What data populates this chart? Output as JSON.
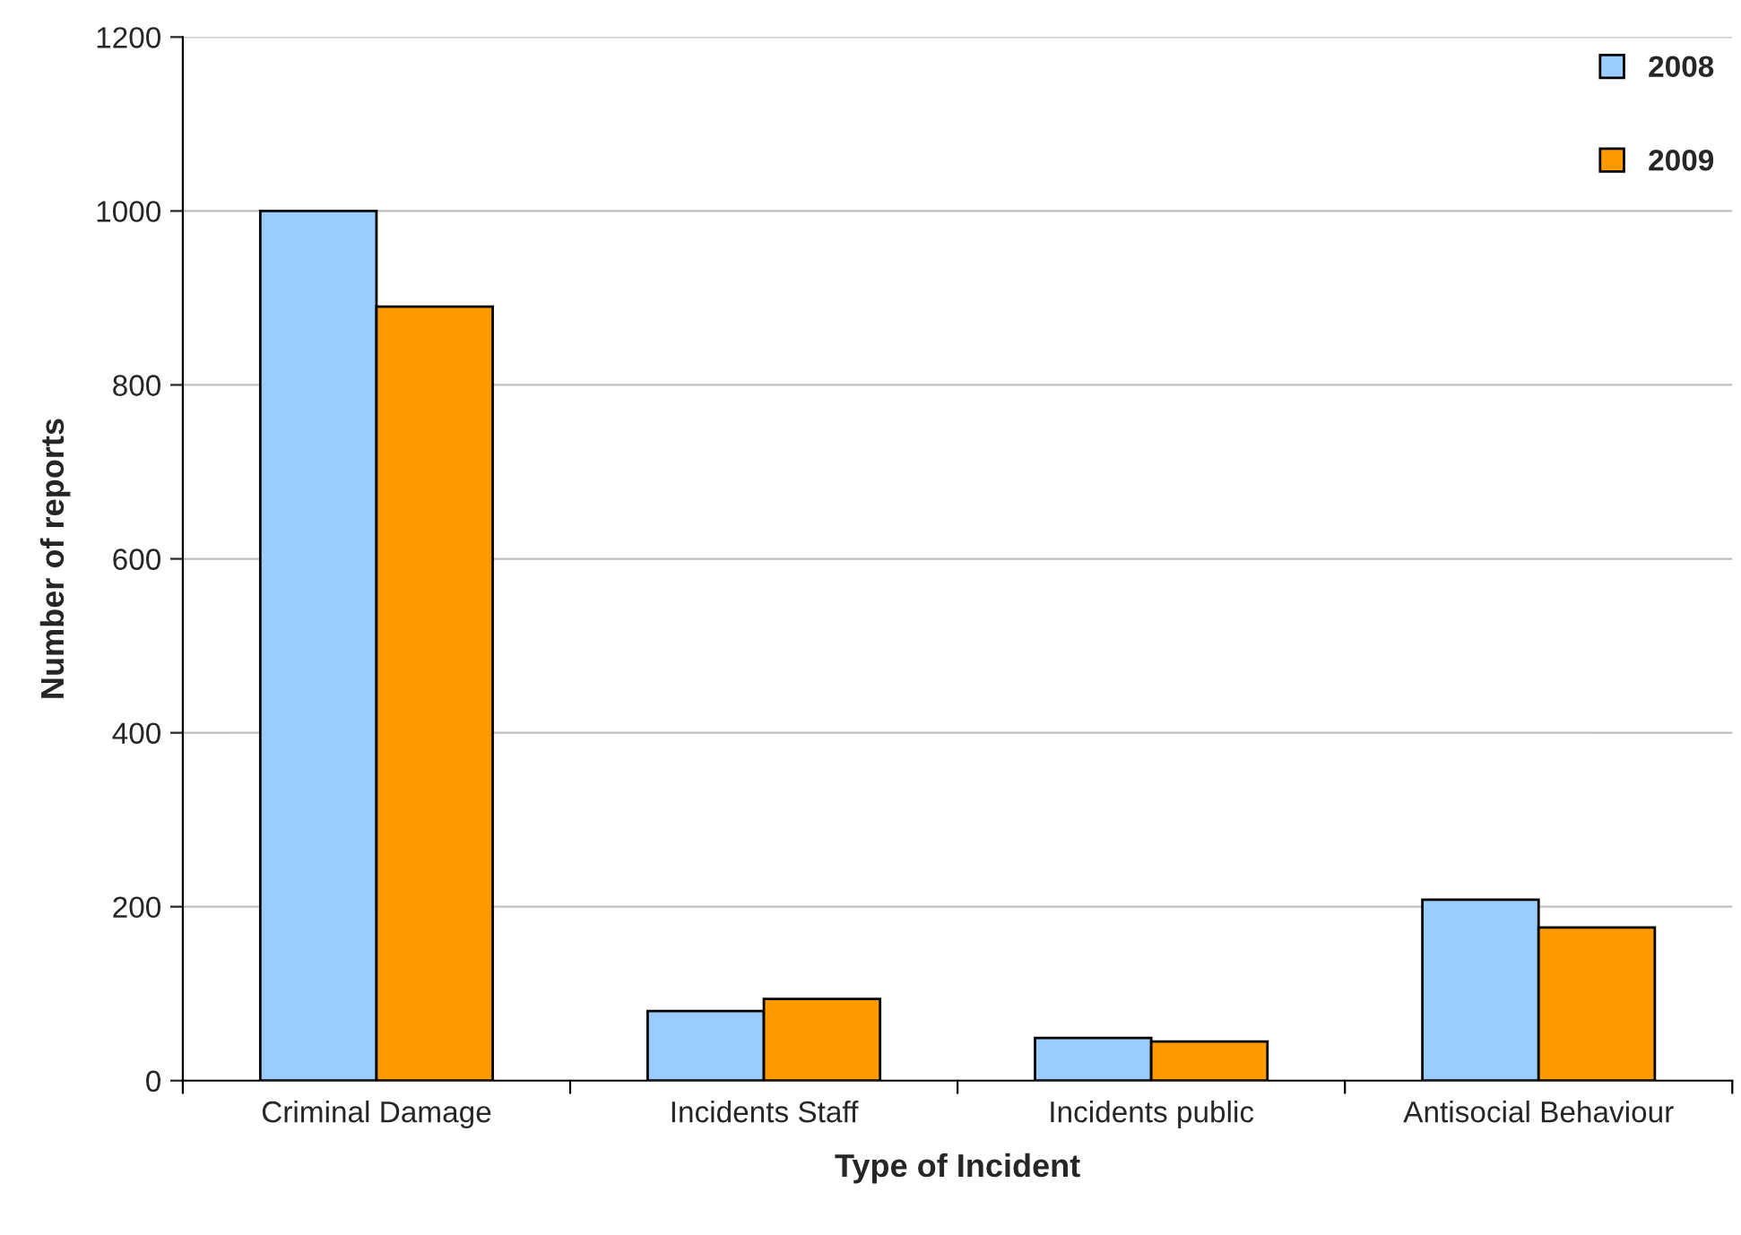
{
  "chart_data": {
    "type": "bar",
    "xlabel": "Type of Incident",
    "ylabel": "Number of reports",
    "categories": [
      "Criminal Damage",
      "Incidents Staff",
      "Incidents public",
      "Antisocial Behaviour"
    ],
    "series": [
      {
        "name": "2008",
        "color": "#99ccff",
        "values": [
          1000,
          80,
          49,
          208
        ]
      },
      {
        "name": "2009",
        "color": "#ff9900",
        "values": [
          890,
          94,
          45,
          176
        ]
      }
    ],
    "ylim": [
      0,
      1200
    ],
    "yticks": [
      0,
      200,
      400,
      600,
      800,
      1000,
      1200
    ],
    "grid": "y",
    "legend": "top right"
  }
}
